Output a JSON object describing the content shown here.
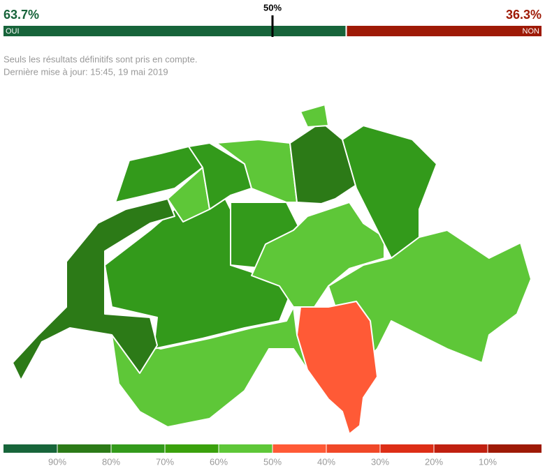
{
  "result": {
    "yes": {
      "value": 63.7,
      "label": "63.7%",
      "name": "OUI",
      "color": "#17643a"
    },
    "no": {
      "value": 36.3,
      "label": "36.3%",
      "name": "NON",
      "color": "#9e1a06"
    },
    "majority": {
      "value": 50,
      "label": "50%"
    }
  },
  "notes": [
    "Seuls les résultats définitifs sont pris en compte.",
    "Dernière mise à jour: 15:45, 19 mai 2019"
  ],
  "legend": {
    "colors": [
      "#17653a",
      "#2c7a17",
      "#339a1b",
      "#3aa10c",
      "#5ec738",
      "#ff5a36",
      "#f04828",
      "#dd2e16",
      "#c02010",
      "#9e1a06"
    ],
    "ticks": [
      {
        "value": 90,
        "label": "90%"
      },
      {
        "value": 80,
        "label": "80%"
      },
      {
        "value": 70,
        "label": "70%"
      },
      {
        "value": 60,
        "label": "60%"
      },
      {
        "value": 50,
        "label": "50%"
      },
      {
        "value": 40,
        "label": "40%"
      },
      {
        "value": 30,
        "label": "30%"
      },
      {
        "value": 20,
        "label": "20%"
      },
      {
        "value": 10,
        "label": "10%"
      }
    ]
  }
}
